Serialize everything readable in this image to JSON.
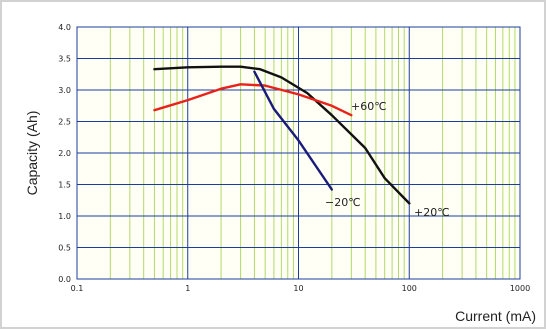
{
  "chart_data": {
    "type": "line",
    "xlabel": "Current (mA)",
    "ylabel": "Capacity (Ah)",
    "xscale": "log",
    "xlim": [
      0.1,
      1000
    ],
    "ylim": [
      0.0,
      4.0
    ],
    "grid": true,
    "x_ticks": [
      "0.1",
      "1",
      "10",
      "100",
      "1000"
    ],
    "y_ticks": [
      "0.0",
      "0.5",
      "1.0",
      "1.5",
      "2.0",
      "2.5",
      "3.0",
      "3.5",
      "4.0"
    ],
    "series": [
      {
        "name": "+20℃",
        "color": "#111111",
        "x": [
          0.5,
          1,
          2,
          3,
          4.5,
          7,
          12,
          20,
          40,
          60,
          100
        ],
        "y": [
          3.33,
          3.36,
          3.37,
          3.37,
          3.33,
          3.2,
          2.95,
          2.6,
          2.08,
          1.6,
          1.2
        ]
      },
      {
        "name": "+60℃",
        "color": "#e8221a",
        "x": [
          0.5,
          1,
          2,
          3,
          5,
          10,
          20,
          30
        ],
        "y": [
          2.68,
          2.84,
          3.02,
          3.09,
          3.07,
          2.93,
          2.75,
          2.6
        ]
      },
      {
        "name": "−20℃",
        "color": "#1a1a7a",
        "x": [
          4,
          6,
          10,
          20
        ],
        "y": [
          3.29,
          2.7,
          2.2,
          1.42
        ]
      }
    ],
    "annotations": [
      "+60℃",
      "−20℃",
      "+20℃"
    ]
  },
  "colors": {
    "plot_background": "#fffff5",
    "minor_grid": "#b2d96a",
    "major_grid": "#1e3c9e"
  }
}
